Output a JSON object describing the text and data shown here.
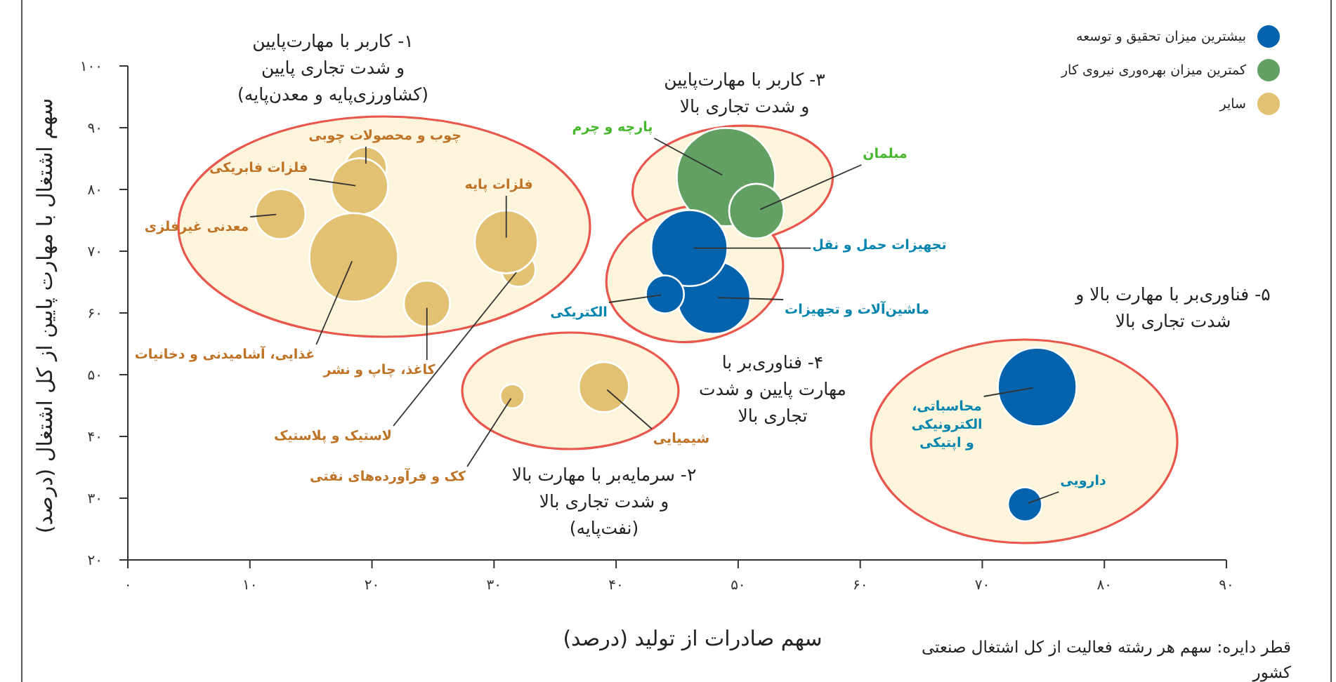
{
  "chart_data": {
    "type": "bubble",
    "xlabel": "سهم صادرات از تولید (درصد)",
    "ylabel": "سهم اشتغال با مهارت پایین از کل اشتغال (درصد)",
    "xlim": [
      0,
      90
    ],
    "xticks": [
      {
        "value": 0,
        "label": "۰"
      },
      {
        "value": 10,
        "label": "۱۰"
      },
      {
        "value": 20,
        "label": "۲۰"
      },
      {
        "value": 30,
        "label": "۳۰"
      },
      {
        "value": 40,
        "label": "۴۰"
      },
      {
        "value": 50,
        "label": "۵۰"
      },
      {
        "value": 60,
        "label": "۶۰"
      },
      {
        "value": 70,
        "label": "۷۰"
      },
      {
        "value": 80,
        "label": "۸۰"
      },
      {
        "value": 90,
        "label": "۹۰"
      }
    ],
    "ylim": [
      20,
      100
    ],
    "yticks": [
      {
        "value": 20,
        "label": "۲۰"
      },
      {
        "value": 30,
        "label": "۳۰"
      },
      {
        "value": 40,
        "label": "۴۰"
      },
      {
        "value": 50,
        "label": "۵۰"
      },
      {
        "value": 60,
        "label": "۶۰"
      },
      {
        "value": 70,
        "label": "۷۰"
      },
      {
        "value": 80,
        "label": "۸۰"
      },
      {
        "value": 90,
        "label": "۹۰"
      },
      {
        "value": 100,
        "label": "۱۰۰"
      }
    ],
    "legend": "top right",
    "series": [
      {
        "name": "بیشترین میزان تحقیق و توسعه",
        "color": "#0563ad",
        "x": [
          48,
          46,
          44,
          74.5,
          73.5
        ],
        "values": [
          62.5,
          70.5,
          63,
          48,
          29
        ],
        "sizes": [
          0.55,
          0.6,
          0.15,
          0.64,
          0.12
        ]
      },
      {
        "name": "کمترین میزان بهره‌وری نیروی کار",
        "color": "#63a064",
        "x": [
          49,
          51.5
        ],
        "values": [
          82,
          76.5
        ],
        "sizes": [
          1,
          0.31
        ]
      },
      {
        "name": "سایر",
        "color": "#e2c173",
        "x": [
          12.5,
          19.5,
          19,
          18.5,
          24.5,
          32,
          31,
          31.5,
          39
        ],
        "values": [
          76,
          83.5,
          80.5,
          69,
          61.5,
          67,
          71.5,
          46.5,
          48
        ],
        "sizes": [
          0.26,
          0.18,
          0.33,
          0.81,
          0.22,
          0.12,
          0.41,
          0.06,
          0.26
        ]
      }
    ],
    "annotations": [
      "۱- کاربر با مهارت‌پایین\nو شدت تجاری پایین\n(کشاورزی‌پایه و معدن‌پایه)",
      "۲- سرمایه‌بر با مهارت بالا\nو شدت تجاری بالا\n(نفت‌پایه)",
      "۳- کاربر با مهارت‌پایین\nو شدت تجاری بالا",
      "۴- فناوری‌بر با\nمهارت پایین و شدت\nتجاری بالا",
      "۵- فناوری‌بر با مهارت بالا و\nشدت تجاری بالا",
      {
        "text": "چوب و محصولات چوبی",
        "x": 19.5,
        "y": 83.5
      },
      {
        "text": "فلزات فابریکی",
        "x": 19,
        "y": 80.5
      },
      {
        "text": "معدنی غیرفلزی",
        "x": 12.5,
        "y": 76
      },
      {
        "text": "فلزات پایه",
        "x": 31,
        "y": 71.5
      },
      {
        "text": "غذایی، آشامیدنی و دخانیات",
        "x": 18.5,
        "y": 69
      },
      {
        "text": "کاغذ، چاپ و نشر",
        "x": 24.5,
        "y": 61.5
      },
      {
        "text": "لاستیک و پلاستیک",
        "x": 32,
        "y": 67
      },
      {
        "text": "کک و فرآورده‌های نفتی",
        "x": 31.5,
        "y": 46.5
      },
      {
        "text": "شیمیایی",
        "x": 39,
        "y": 48
      },
      {
        "text": "پارچه و چرم",
        "x": 49,
        "y": 82
      },
      {
        "text": "مبلمان",
        "x": 51.5,
        "y": 76.5
      },
      {
        "text": "تجهیزات حمل و نقل",
        "x": 46,
        "y": 70.5
      },
      {
        "text": "ماشین‌آلات و تجهیزات",
        "x": 48,
        "y": 62.5
      },
      {
        "text": "الکتریکی",
        "x": 44,
        "y": 63
      },
      {
        "text": "محاسباتی،\nالکترونیکی\nو اپتیکی",
        "x": 74.5,
        "y": 48
      },
      {
        "text": "دارویی",
        "x": 73.5,
        "y": 29
      },
      "قطر دایره: سهم هر رشته فعالیت از کل اشتغال صنعتی کشور"
    ]
  }
}
